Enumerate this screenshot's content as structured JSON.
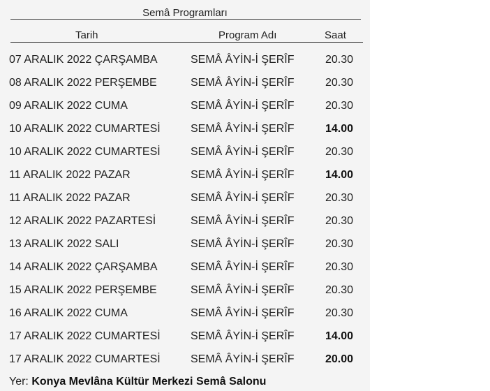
{
  "title": "Semâ Programları",
  "headers": {
    "date": "Tarih",
    "program": "Program Adı",
    "time": "Saat"
  },
  "rows": [
    {
      "date": "07 ARALIK 2022 ÇARŞAMBA",
      "program": "SEMÂ ÂYİN-İ ŞERÎF",
      "time": "20.30",
      "bold": false
    },
    {
      "date": "08 ARALIK 2022 PERŞEMBE",
      "program": "SEMÂ ÂYİN-İ ŞERÎF",
      "time": "20.30",
      "bold": false
    },
    {
      "date": "09 ARALIK 2022 CUMA",
      "program": "SEMÂ ÂYİN-İ ŞERÎF",
      "time": "20.30",
      "bold": false
    },
    {
      "date": "10 ARALIK 2022 CUMARTESİ",
      "program": "SEMÂ ÂYİN-İ ŞERÎF",
      "time": "14.00",
      "bold": true
    },
    {
      "date": "10 ARALIK 2022 CUMARTESİ",
      "program": "SEMÂ ÂYİN-İ ŞERÎF",
      "time": "20.30",
      "bold": false
    },
    {
      "date": "11 ARALIK 2022 PAZAR",
      "program": "SEMÂ ÂYİN-İ ŞERÎF",
      "time": "14.00",
      "bold": true
    },
    {
      "date": "11 ARALIK 2022 PAZAR",
      "program": "SEMÂ ÂYİN-İ ŞERÎF",
      "time": "20.30",
      "bold": false
    },
    {
      "date": "12 ARALIK 2022 PAZARTESİ",
      "program": "SEMÂ ÂYİN-İ ŞERÎF",
      "time": "20.30",
      "bold": false
    },
    {
      "date": "13 ARALIK 2022 SALI",
      "program": "SEMÂ ÂYİN-İ ŞERÎF",
      "time": "20.30",
      "bold": false
    },
    {
      "date": "14 ARALIK 2022 ÇARŞAMBA",
      "program": "SEMÂ ÂYİN-İ ŞERÎF",
      "time": "20.30",
      "bold": false
    },
    {
      "date": "15 ARALIK 2022 PERŞEMBE",
      "program": "SEMÂ ÂYİN-İ ŞERÎF",
      "time": "20.30",
      "bold": false
    },
    {
      "date": "16 ARALIK 2022 CUMA",
      "program": "SEMÂ ÂYİN-İ ŞERÎF",
      "time": "20.30",
      "bold": false
    },
    {
      "date": "17 ARALIK 2022 CUMARTESİ",
      "program": "SEMÂ ÂYİN-İ ŞERÎF",
      "time": "14.00",
      "bold": true
    },
    {
      "date": "17 ARALIK 2022 CUMARTESİ",
      "program": "SEMÂ ÂYİN-İ ŞERÎF",
      "time": "20.00",
      "bold": true
    }
  ],
  "footer": {
    "label": "Yer:",
    "venue": "Konya Mevlâna Kültür Merkezi Semâ Salonu"
  }
}
